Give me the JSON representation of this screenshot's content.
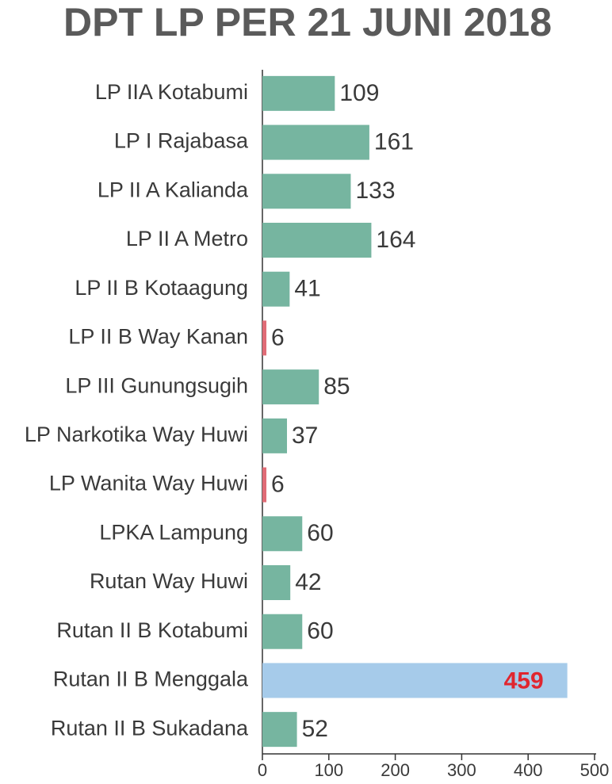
{
  "chart_data": {
    "type": "hbar",
    "title": "DPT LP PER 21 JUNI 2018",
    "categories": [
      "LP IIA Kotabumi",
      "LP I Rajabasa",
      "LP II A Kalianda",
      "LP II A Metro",
      "LP II B Kotaagung",
      "LP II B Way Kanan",
      "LP III Gunungsugih",
      "LP Narkotika Way Huwi",
      "LP Wanita Way Huwi",
      "LPKA Lampung",
      "Rutan Way Huwi",
      "Rutan II B Kotabumi",
      "Rutan II B Menggala",
      "Rutan II B Sukadana"
    ],
    "values": [
      109,
      161,
      133,
      164,
      41,
      6,
      85,
      37,
      6,
      60,
      42,
      60,
      459,
      52
    ],
    "colors": [
      "#76b5a0",
      "#76b5a0",
      "#76b5a0",
      "#76b5a0",
      "#76b5a0",
      "#e06c76",
      "#76b5a0",
      "#76b5a0",
      "#e06c76",
      "#76b5a0",
      "#76b5a0",
      "#76b5a0",
      "#a6cbea",
      "#76b5a0"
    ],
    "inside_label_color": "#e0262f",
    "xlim": [
      0,
      500
    ],
    "xticks": [
      0,
      100,
      200,
      300,
      400,
      500
    ]
  }
}
